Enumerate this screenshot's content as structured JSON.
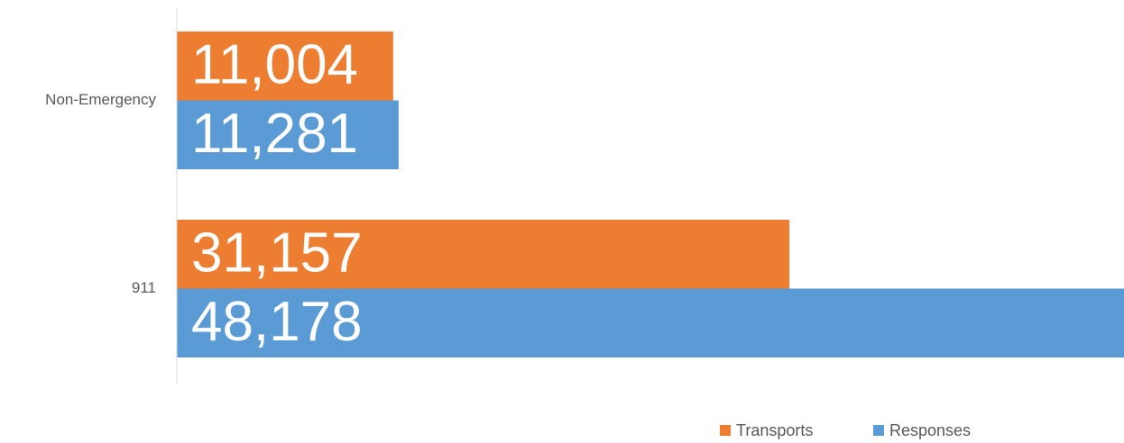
{
  "chart_data": {
    "type": "bar",
    "orientation": "horizontal",
    "categories": [
      "Non-Emergency",
      "911"
    ],
    "series": [
      {
        "name": "Transports",
        "color": "#ED7D31",
        "values": [
          11004,
          31157
        ],
        "value_labels": [
          "11,004",
          "31,157"
        ]
      },
      {
        "name": "Responses",
        "color": "#5B9BD5",
        "values": [
          11281,
          48178
        ],
        "value_labels": [
          "11,281",
          "48,178"
        ]
      }
    ],
    "legend": "bottom"
  }
}
